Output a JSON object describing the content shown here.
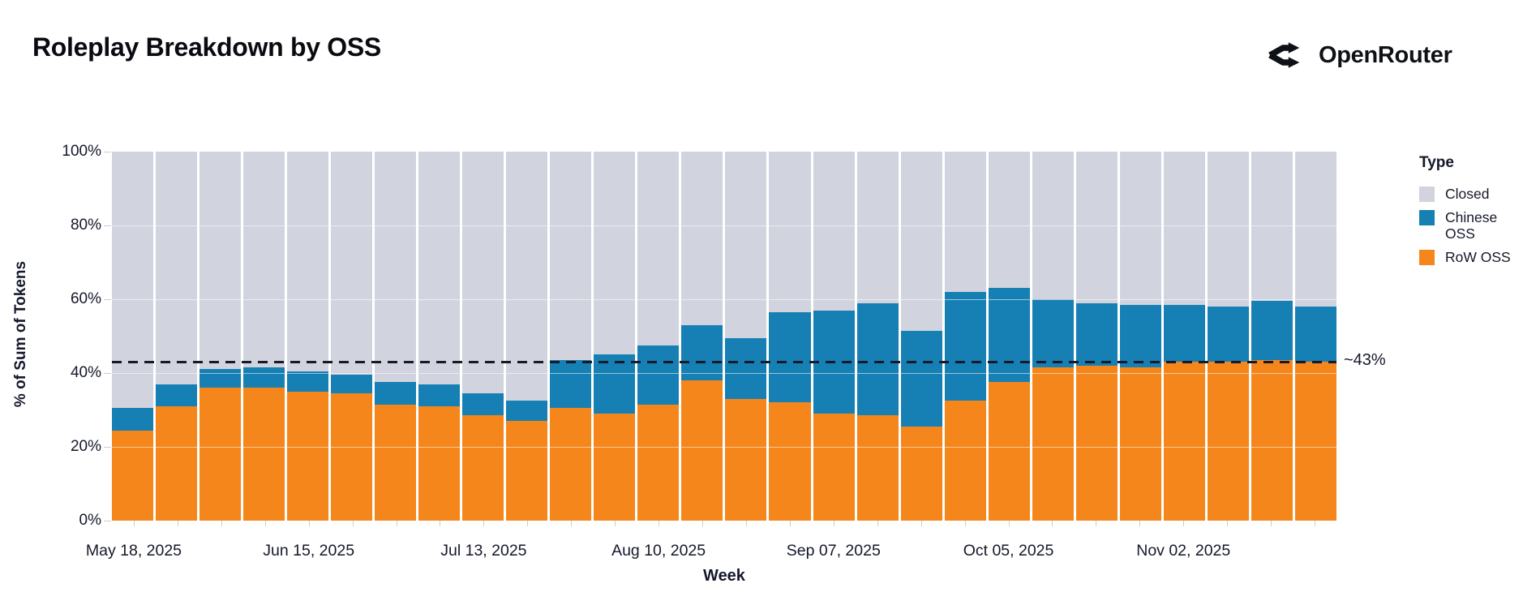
{
  "header": {
    "title": "Roleplay Breakdown by OSS",
    "brand": "OpenRouter"
  },
  "chart_data": {
    "type": "bar",
    "stacked": true,
    "title": "Roleplay Breakdown by OSS",
    "xlabel": "Week",
    "ylabel": "% of Sum of Tokens",
    "ylim": [
      0,
      100
    ],
    "grid": true,
    "y_ticks": [
      "0%",
      "20%",
      "40%",
      "60%",
      "80%",
      "100%"
    ],
    "categories": [
      "May 18, 2025",
      "May 25, 2025",
      "Jun 01, 2025",
      "Jun 08, 2025",
      "Jun 15, 2025",
      "Jun 22, 2025",
      "Jun 29, 2025",
      "Jul 06, 2025",
      "Jul 13, 2025",
      "Jul 20, 2025",
      "Jul 27, 2025",
      "Aug 03, 2025",
      "Aug 10, 2025",
      "Aug 17, 2025",
      "Aug 24, 2025",
      "Aug 31, 2025",
      "Sep 07, 2025",
      "Sep 14, 2025",
      "Sep 21, 2025",
      "Sep 28, 2025",
      "Oct 05, 2025",
      "Oct 12, 2025",
      "Oct 19, 2025",
      "Oct 26, 2025",
      "Nov 02, 2025",
      "Nov 09, 2025",
      "Nov 16, 2025",
      "Nov 23, 2025"
    ],
    "x_ticks": [
      {
        "index": 0,
        "label": "May 18, 2025"
      },
      {
        "index": 4,
        "label": "Jun 15, 2025"
      },
      {
        "index": 8,
        "label": "Jul 13, 2025"
      },
      {
        "index": 12,
        "label": "Aug 10, 2025"
      },
      {
        "index": 16,
        "label": "Sep 07, 2025"
      },
      {
        "index": 20,
        "label": "Oct 05, 2025"
      },
      {
        "index": 24,
        "label": "Nov 02, 2025"
      }
    ],
    "stack_order_bottom_to_top": [
      "RoW OSS",
      "Chinese OSS",
      "Closed"
    ],
    "series": [
      {
        "name": "RoW OSS",
        "color": "#F5861B",
        "values": [
          24.5,
          31,
          36,
          36,
          35,
          34.5,
          31.5,
          31,
          28.5,
          27,
          30.5,
          29,
          31.5,
          38,
          33,
          32,
          29,
          28.5,
          25.5,
          32.5,
          37.5,
          41.5,
          42,
          41.5,
          43,
          43,
          43.5,
          43
        ]
      },
      {
        "name": "Chinese OSS",
        "color": "#1680B4",
        "values": [
          6,
          6,
          5,
          5.5,
          5.5,
          5,
          6,
          6,
          6,
          5.5,
          13,
          16,
          16,
          15,
          16.5,
          24.5,
          28,
          30.5,
          26,
          29.5,
          25.5,
          18.5,
          17,
          17,
          15.5,
          15,
          16,
          15
        ]
      },
      {
        "name": "Closed",
        "color": "#D1D4DE",
        "values": [
          69.5,
          63,
          59,
          58.5,
          59.5,
          60.5,
          62.5,
          63,
          65.5,
          67.5,
          56.5,
          55,
          52.5,
          47,
          50.5,
          43.5,
          43,
          41,
          48.5,
          38,
          37,
          40,
          41,
          41.5,
          41.5,
          42,
          40.5,
          42
        ]
      }
    ],
    "legend": {
      "title": "Type",
      "items": [
        {
          "label": "Closed",
          "color": "#D1D4DE"
        },
        {
          "label": "Chinese OSS",
          "color": "#1680B4"
        },
        {
          "label": "RoW OSS",
          "color": "#F5861B"
        }
      ],
      "position": "right"
    },
    "annotation": {
      "label": "~43%",
      "value": 43,
      "style": "dashed",
      "color": "#171a28"
    }
  }
}
